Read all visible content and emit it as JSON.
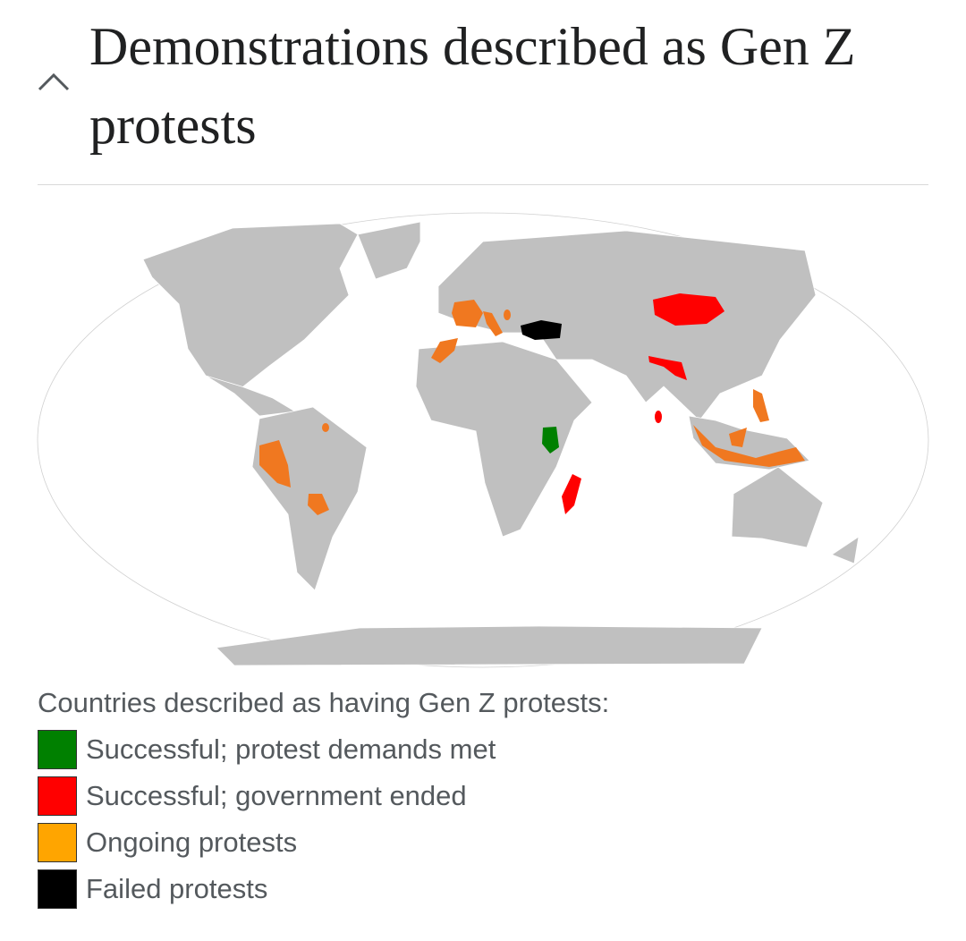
{
  "header": {
    "title": "Demonstrations described as Gen Z protests"
  },
  "legend": {
    "caption": "Countries described as having Gen Z protests:",
    "items": [
      {
        "label": "Successful; protest demands met",
        "color": "#008000"
      },
      {
        "label": "Successful; government ended",
        "color": "#ff0000"
      },
      {
        "label": "Ongoing protests",
        "color": "#ffa500"
      },
      {
        "label": "Failed protests",
        "color": "#000000"
      }
    ]
  }
}
